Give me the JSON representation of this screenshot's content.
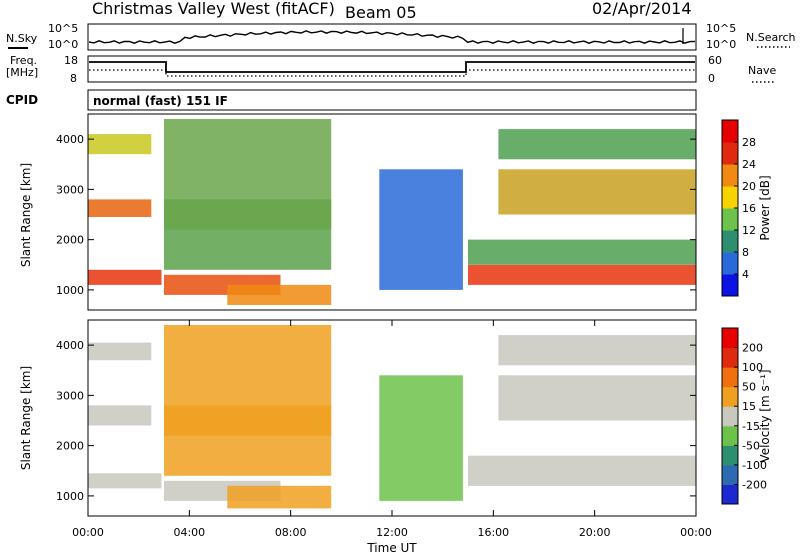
{
  "header": {
    "station": "Christmas Valley West (fitACF)",
    "beam": "Beam 05",
    "date": "02/Apr/2014"
  },
  "top_panels": {
    "nsky_label": "N.Sky",
    "nsearch_label": "N.Search",
    "noise_ticks_left": [
      "10^5",
      "10^0"
    ],
    "noise_ticks_right": [
      "10^5",
      "10^0"
    ],
    "freq_label_1": "Freq.",
    "freq_label_2": "[MHz]",
    "freq_ticks": [
      "18",
      "8"
    ],
    "nave_label": "Nave",
    "nave_ticks": [
      "60",
      "0"
    ],
    "cpid_label": "CPID",
    "cpid_value": "normal (fast) 151 IF"
  },
  "chart_data": [
    {
      "type": "heatmap",
      "panel": "power",
      "ylabel": "Slant Range [km]",
      "yticks": [
        "1000",
        "2000",
        "3000",
        "4000"
      ],
      "ylim": [
        600,
        4500
      ],
      "xlim": [
        0,
        24
      ],
      "colorbar_label": "Power [dB]",
      "colorbar_ticks": [
        "28",
        "24",
        "20",
        "16",
        "12",
        "8",
        "4"
      ],
      "colorbar_colors": [
        "#0a12e6",
        "#2a6ad8",
        "#2e8f70",
        "#6cc24a",
        "#f7d400",
        "#f08a12",
        "#e02a10",
        "#e60000"
      ],
      "bands": [
        {
          "t": [
            0.0,
            2.9
          ],
          "r": [
            1100,
            1400
          ],
          "c": "#e8340e"
        },
        {
          "t": [
            0.0,
            2.5
          ],
          "r": [
            2450,
            2800
          ],
          "c": "#e8640e"
        },
        {
          "t": [
            0.0,
            2.5
          ],
          "r": [
            3700,
            4100
          ],
          "c": "#c8c820"
        },
        {
          "t": [
            3.0,
            7.6
          ],
          "r": [
            900,
            1300
          ],
          "c": "#e8500e"
        },
        {
          "t": [
            5.5,
            9.6
          ],
          "r": [
            700,
            1100
          ],
          "c": "#f08a12"
        },
        {
          "t": [
            3.0,
            9.6
          ],
          "r": [
            1400,
            2800
          ],
          "c": "#5aa24a"
        },
        {
          "t": [
            3.0,
            9.6
          ],
          "r": [
            2200,
            4400
          ],
          "c": "#6aa64a"
        },
        {
          "t": [
            11.5,
            14.8
          ],
          "r": [
            1000,
            3400
          ],
          "c": "#2a6ad8"
        },
        {
          "t": [
            15.0,
            24.0
          ],
          "r": [
            1100,
            1500
          ],
          "c": "#e8340e"
        },
        {
          "t": [
            15.0,
            24.0
          ],
          "r": [
            1500,
            2000
          ],
          "c": "#4ea050"
        },
        {
          "t": [
            16.2,
            24.0
          ],
          "r": [
            2500,
            3400
          ],
          "c": "#c8a020"
        },
        {
          "t": [
            16.2,
            24.0
          ],
          "r": [
            3600,
            4200
          ],
          "c": "#4ea050"
        }
      ]
    },
    {
      "type": "heatmap",
      "panel": "velocity",
      "ylabel": "Slant Range [km]",
      "yticks": [
        "1000",
        "2000",
        "3000",
        "4000"
      ],
      "ylim": [
        600,
        4500
      ],
      "xlim": [
        0,
        24
      ],
      "xticks": [
        "00:00",
        "04:00",
        "08:00",
        "12:00",
        "16:00",
        "20:00",
        "00:00"
      ],
      "xlabel": "Time UT",
      "colorbar_label": "Velocity [m s⁻¹]",
      "colorbar_ticks": [
        "200",
        "100",
        "50",
        "15",
        "-15",
        "-50",
        "-100",
        "-200"
      ],
      "colorbar_colors": [
        "#1a2ad0",
        "#2e6ab0",
        "#2e8f70",
        "#6cc24a",
        "#c8c8c0",
        "#f0a020",
        "#f07010",
        "#e02a10",
        "#e60000"
      ],
      "bands": [
        {
          "t": [
            0.0,
            2.9
          ],
          "r": [
            1150,
            1450
          ],
          "c": "#c8c8c0"
        },
        {
          "t": [
            0.0,
            2.5
          ],
          "r": [
            2400,
            2800
          ],
          "c": "#c8c8c0"
        },
        {
          "t": [
            0.0,
            2.5
          ],
          "r": [
            3700,
            4050
          ],
          "c": "#c8c8c0"
        },
        {
          "t": [
            3.0,
            7.6
          ],
          "r": [
            900,
            1300
          ],
          "c": "#c8c8c0"
        },
        {
          "t": [
            5.5,
            9.6
          ],
          "r": [
            750,
            1200
          ],
          "c": "#f0a020"
        },
        {
          "t": [
            3.0,
            9.6
          ],
          "r": [
            1400,
            2800
          ],
          "c": "#f0a020"
        },
        {
          "t": [
            3.0,
            9.6
          ],
          "r": [
            2200,
            4400
          ],
          "c": "#f0a020"
        },
        {
          "t": [
            11.5,
            14.8
          ],
          "r": [
            900,
            3400
          ],
          "c": "#6cc24a"
        },
        {
          "t": [
            15.0,
            24.0
          ],
          "r": [
            1200,
            1800
          ],
          "c": "#c8c8c0"
        },
        {
          "t": [
            16.2,
            24.0
          ],
          "r": [
            2500,
            3400
          ],
          "c": "#c8c8c0"
        },
        {
          "t": [
            16.2,
            24.0
          ],
          "r": [
            3600,
            4200
          ],
          "c": "#c8c8c0"
        }
      ]
    }
  ]
}
